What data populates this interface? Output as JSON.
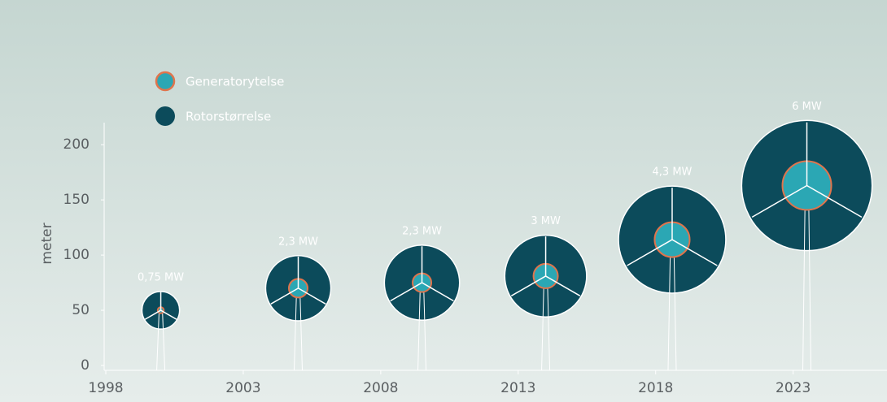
{
  "chart_data": {
    "type": "bubble",
    "y_label": "meter",
    "x": [
      2000,
      2005,
      2009.5,
      2014,
      2018.6,
      2023.5
    ],
    "values": [
      50,
      70,
      75,
      81,
      114,
      163
    ],
    "series": [
      {
        "name": "Generatorytelse",
        "color": "#2ba7b4",
        "border": "#e0744c",
        "values": [
          0.75,
          2.3,
          2.3,
          3,
          4.3,
          6
        ],
        "value_labels": [
          "0,75 MW",
          "2,3 MW",
          "2,3 MW",
          "3 MW",
          "4,3 MW",
          "6 MW"
        ]
      },
      {
        "name": "Rotorstørrelse",
        "color": "#0c4b5b",
        "values": [
          34,
          59,
          68,
          74,
          97,
          118
        ]
      }
    ],
    "xlim": [
      1998,
      2026
    ],
    "xticks": [
      1998,
      2003,
      2008,
      2013,
      2018,
      2023
    ],
    "ylim": [
      0,
      220
    ],
    "yticks": [
      0,
      50,
      100,
      150,
      200
    ]
  }
}
